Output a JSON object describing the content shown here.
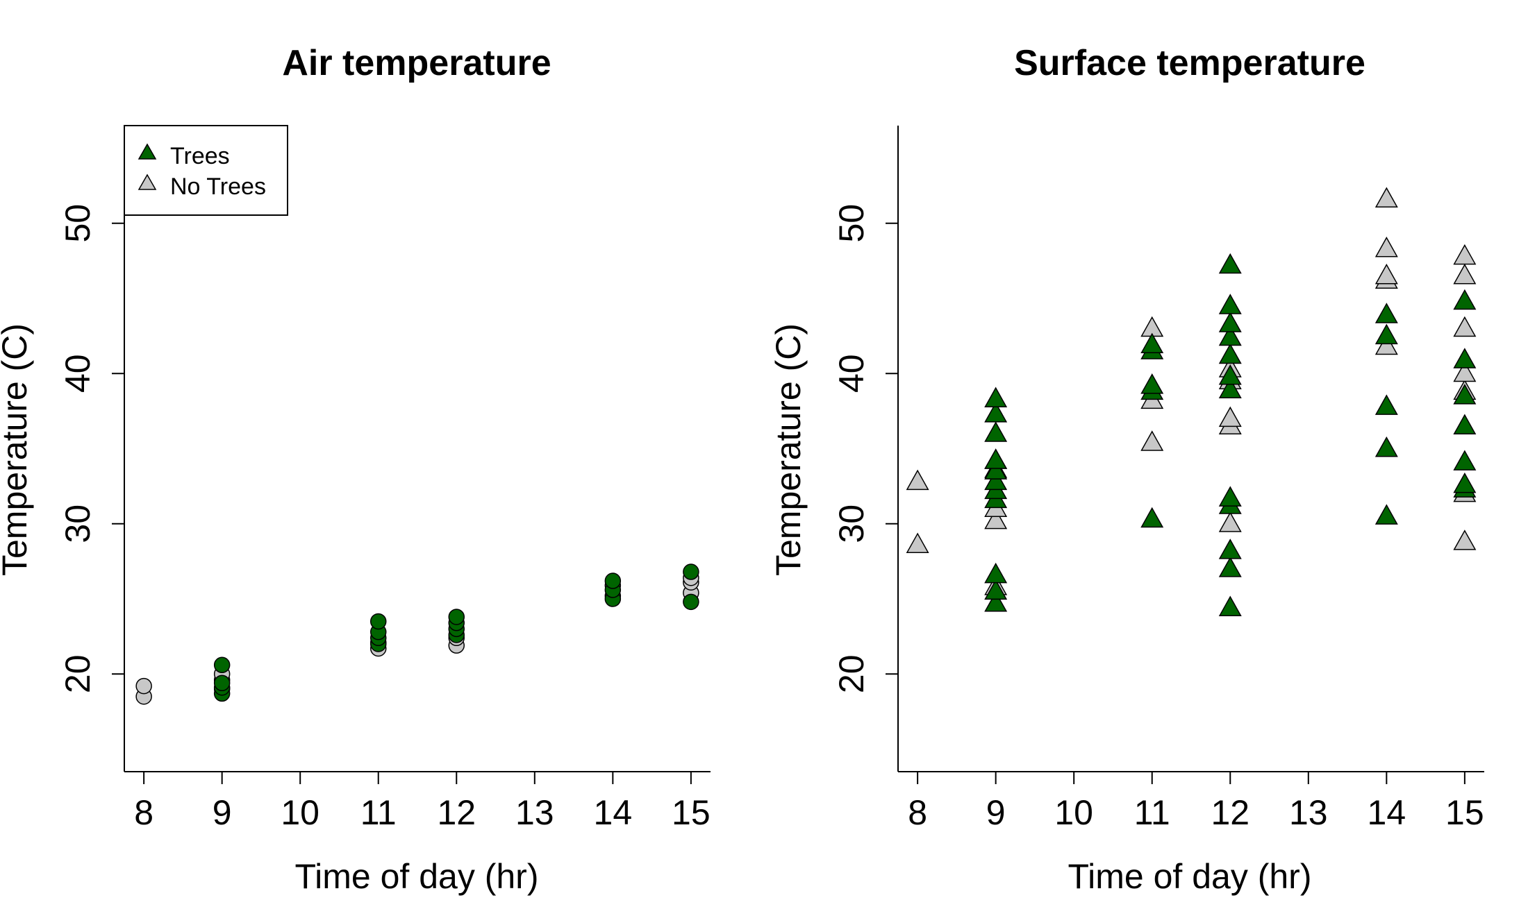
{
  "colors": {
    "trees": "#006400",
    "no_trees": "#c8c8c8",
    "outline": "#000000"
  },
  "legend": {
    "entries": [
      {
        "label": "Trees",
        "color": "#006400"
      },
      {
        "label": "No Trees",
        "color": "#c8c8c8"
      }
    ],
    "position": "top-left",
    "marker": "triangle"
  },
  "chart_data": [
    {
      "type": "scatter",
      "title": "Air temperature",
      "xlabel": "Time of day (hr)",
      "ylabel": "Temperature (C)",
      "xlim": [
        7.75,
        15.25
      ],
      "ylim": [
        13.5,
        56.5
      ],
      "xticks": [
        8,
        9,
        10,
        11,
        12,
        13,
        14,
        15
      ],
      "yticks": [
        20,
        30,
        40,
        50
      ],
      "marker": "circle",
      "show_legend": true,
      "series": [
        {
          "name": "No Trees",
          "color": "#c8c8c8",
          "points": [
            [
              8,
              18.5
            ],
            [
              8,
              19.2
            ],
            [
              9,
              19.0
            ],
            [
              9,
              19.6
            ],
            [
              9,
              20.0
            ],
            [
              11,
              21.7
            ],
            [
              11,
              22.1
            ],
            [
              12,
              21.9
            ],
            [
              12,
              22.4
            ],
            [
              14,
              25.2
            ],
            [
              14,
              25.9
            ],
            [
              15,
              25.4
            ],
            [
              15,
              26.1
            ],
            [
              15,
              26.4
            ]
          ]
        },
        {
          "name": "Trees",
          "color": "#006400",
          "points": [
            [
              9,
              18.7
            ],
            [
              9,
              19.1
            ],
            [
              9,
              19.4
            ],
            [
              9,
              20.6
            ],
            [
              11,
              22.0
            ],
            [
              11,
              22.4
            ],
            [
              11,
              22.8
            ],
            [
              11,
              23.5
            ],
            [
              12,
              22.6
            ],
            [
              12,
              23.0
            ],
            [
              12,
              23.4
            ],
            [
              12,
              23.8
            ],
            [
              14,
              25.0
            ],
            [
              14,
              25.6
            ],
            [
              14,
              26.2
            ],
            [
              15,
              24.8
            ],
            [
              15,
              26.8
            ]
          ]
        }
      ]
    },
    {
      "type": "scatter",
      "title": "Surface temperature",
      "xlabel": "Time of day (hr)",
      "ylabel": "Temperature (C)",
      "xlim": [
        7.75,
        15.25
      ],
      "ylim": [
        13.5,
        56.5
      ],
      "xticks": [
        8,
        9,
        10,
        11,
        12,
        13,
        14,
        15
      ],
      "yticks": [
        20,
        30,
        40,
        50
      ],
      "marker": "triangle",
      "show_legend": false,
      "series": [
        {
          "name": "No Trees",
          "color": "#c8c8c8",
          "points": [
            [
              8,
              28.6
            ],
            [
              8,
              32.8
            ],
            [
              9,
              25.8
            ],
            [
              9,
              30.2
            ],
            [
              9,
              31.0
            ],
            [
              9,
              33.6
            ],
            [
              9,
              34.2
            ],
            [
              11,
              35.4
            ],
            [
              11,
              38.2
            ],
            [
              11,
              43.0
            ],
            [
              12,
              30.0
            ],
            [
              12,
              36.5
            ],
            [
              12,
              37.0
            ],
            [
              12,
              39.5
            ],
            [
              12,
              40.3
            ],
            [
              14,
              41.8
            ],
            [
              14,
              46.2
            ],
            [
              14,
              46.5
            ],
            [
              14,
              48.3
            ],
            [
              14,
              51.6
            ],
            [
              15,
              28.8
            ],
            [
              15,
              32.0
            ],
            [
              15,
              38.8
            ],
            [
              15,
              40.0
            ],
            [
              15,
              43.0
            ],
            [
              15,
              46.5
            ],
            [
              15,
              47.8
            ]
          ]
        },
        {
          "name": "Trees",
          "color": "#006400",
          "points": [
            [
              9,
              24.7
            ],
            [
              9,
              25.5
            ],
            [
              9,
              26.6
            ],
            [
              9,
              31.6
            ],
            [
              9,
              32.2
            ],
            [
              9,
              32.8
            ],
            [
              9,
              33.5
            ],
            [
              9,
              34.2
            ],
            [
              9,
              36.0
            ],
            [
              9,
              37.3
            ],
            [
              9,
              38.3
            ],
            [
              11,
              30.3
            ],
            [
              11,
              38.8
            ],
            [
              11,
              39.2
            ],
            [
              11,
              41.5
            ],
            [
              11,
              41.9
            ],
            [
              12,
              24.4
            ],
            [
              12,
              27.0
            ],
            [
              12,
              28.2
            ],
            [
              12,
              31.2
            ],
            [
              12,
              31.7
            ],
            [
              12,
              38.9
            ],
            [
              12,
              39.8
            ],
            [
              12,
              41.2
            ],
            [
              12,
              42.4
            ],
            [
              12,
              43.3
            ],
            [
              12,
              44.5
            ],
            [
              12,
              47.2
            ],
            [
              14,
              30.5
            ],
            [
              14,
              35.0
            ],
            [
              14,
              37.8
            ],
            [
              14,
              42.5
            ],
            [
              14,
              43.9
            ],
            [
              15,
              32.3
            ],
            [
              15,
              32.6
            ],
            [
              15,
              34.1
            ],
            [
              15,
              36.5
            ],
            [
              15,
              38.5
            ],
            [
              15,
              40.9
            ],
            [
              15,
              44.8
            ]
          ]
        }
      ]
    }
  ]
}
